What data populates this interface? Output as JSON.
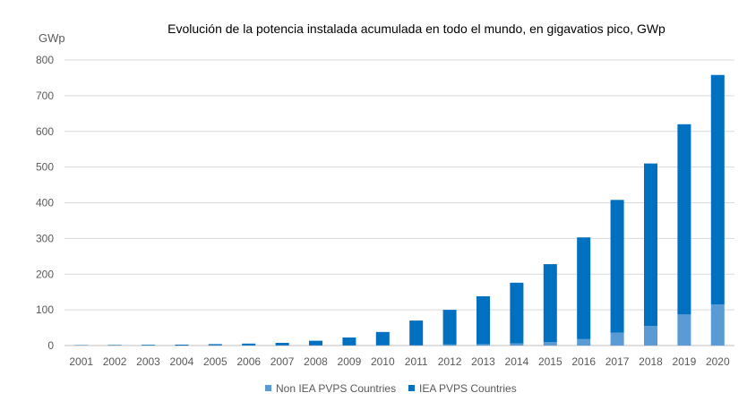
{
  "chart_data": {
    "type": "bar",
    "stacked": true,
    "title": "Evolución de la potencia instalada acumulada en todo el mundo, en gigavatios pico, GWp",
    "ylabel": "GWp",
    "xlabel": "",
    "ylim": [
      0,
      800
    ],
    "yticks": [
      0,
      100,
      200,
      300,
      400,
      500,
      600,
      700,
      800
    ],
    "grid": true,
    "legend_position": "bottom",
    "categories": [
      "2001",
      "2002",
      "2003",
      "2004",
      "2005",
      "2006",
      "2007",
      "2008",
      "2009",
      "2010",
      "2011",
      "2012",
      "2013",
      "2014",
      "2015",
      "2016",
      "2017",
      "2018",
      "2019",
      "2020"
    ],
    "series": [
      {
        "name": "Non IEA PVPS Countries",
        "color": "#5b9bd5",
        "values": [
          0,
          0,
          0,
          0,
          1,
          0.5,
          0.5,
          0.5,
          0.5,
          1,
          1,
          3,
          4,
          6,
          10,
          18,
          36,
          55,
          87,
          115
        ]
      },
      {
        "name": "IEA PVPS Countries",
        "color": "#0070c0",
        "values": [
          1,
          1.5,
          2,
          2.5,
          3,
          5,
          7,
          13,
          22,
          37,
          69,
          97,
          134,
          170,
          218,
          285,
          372,
          455,
          533,
          643
        ]
      }
    ]
  }
}
